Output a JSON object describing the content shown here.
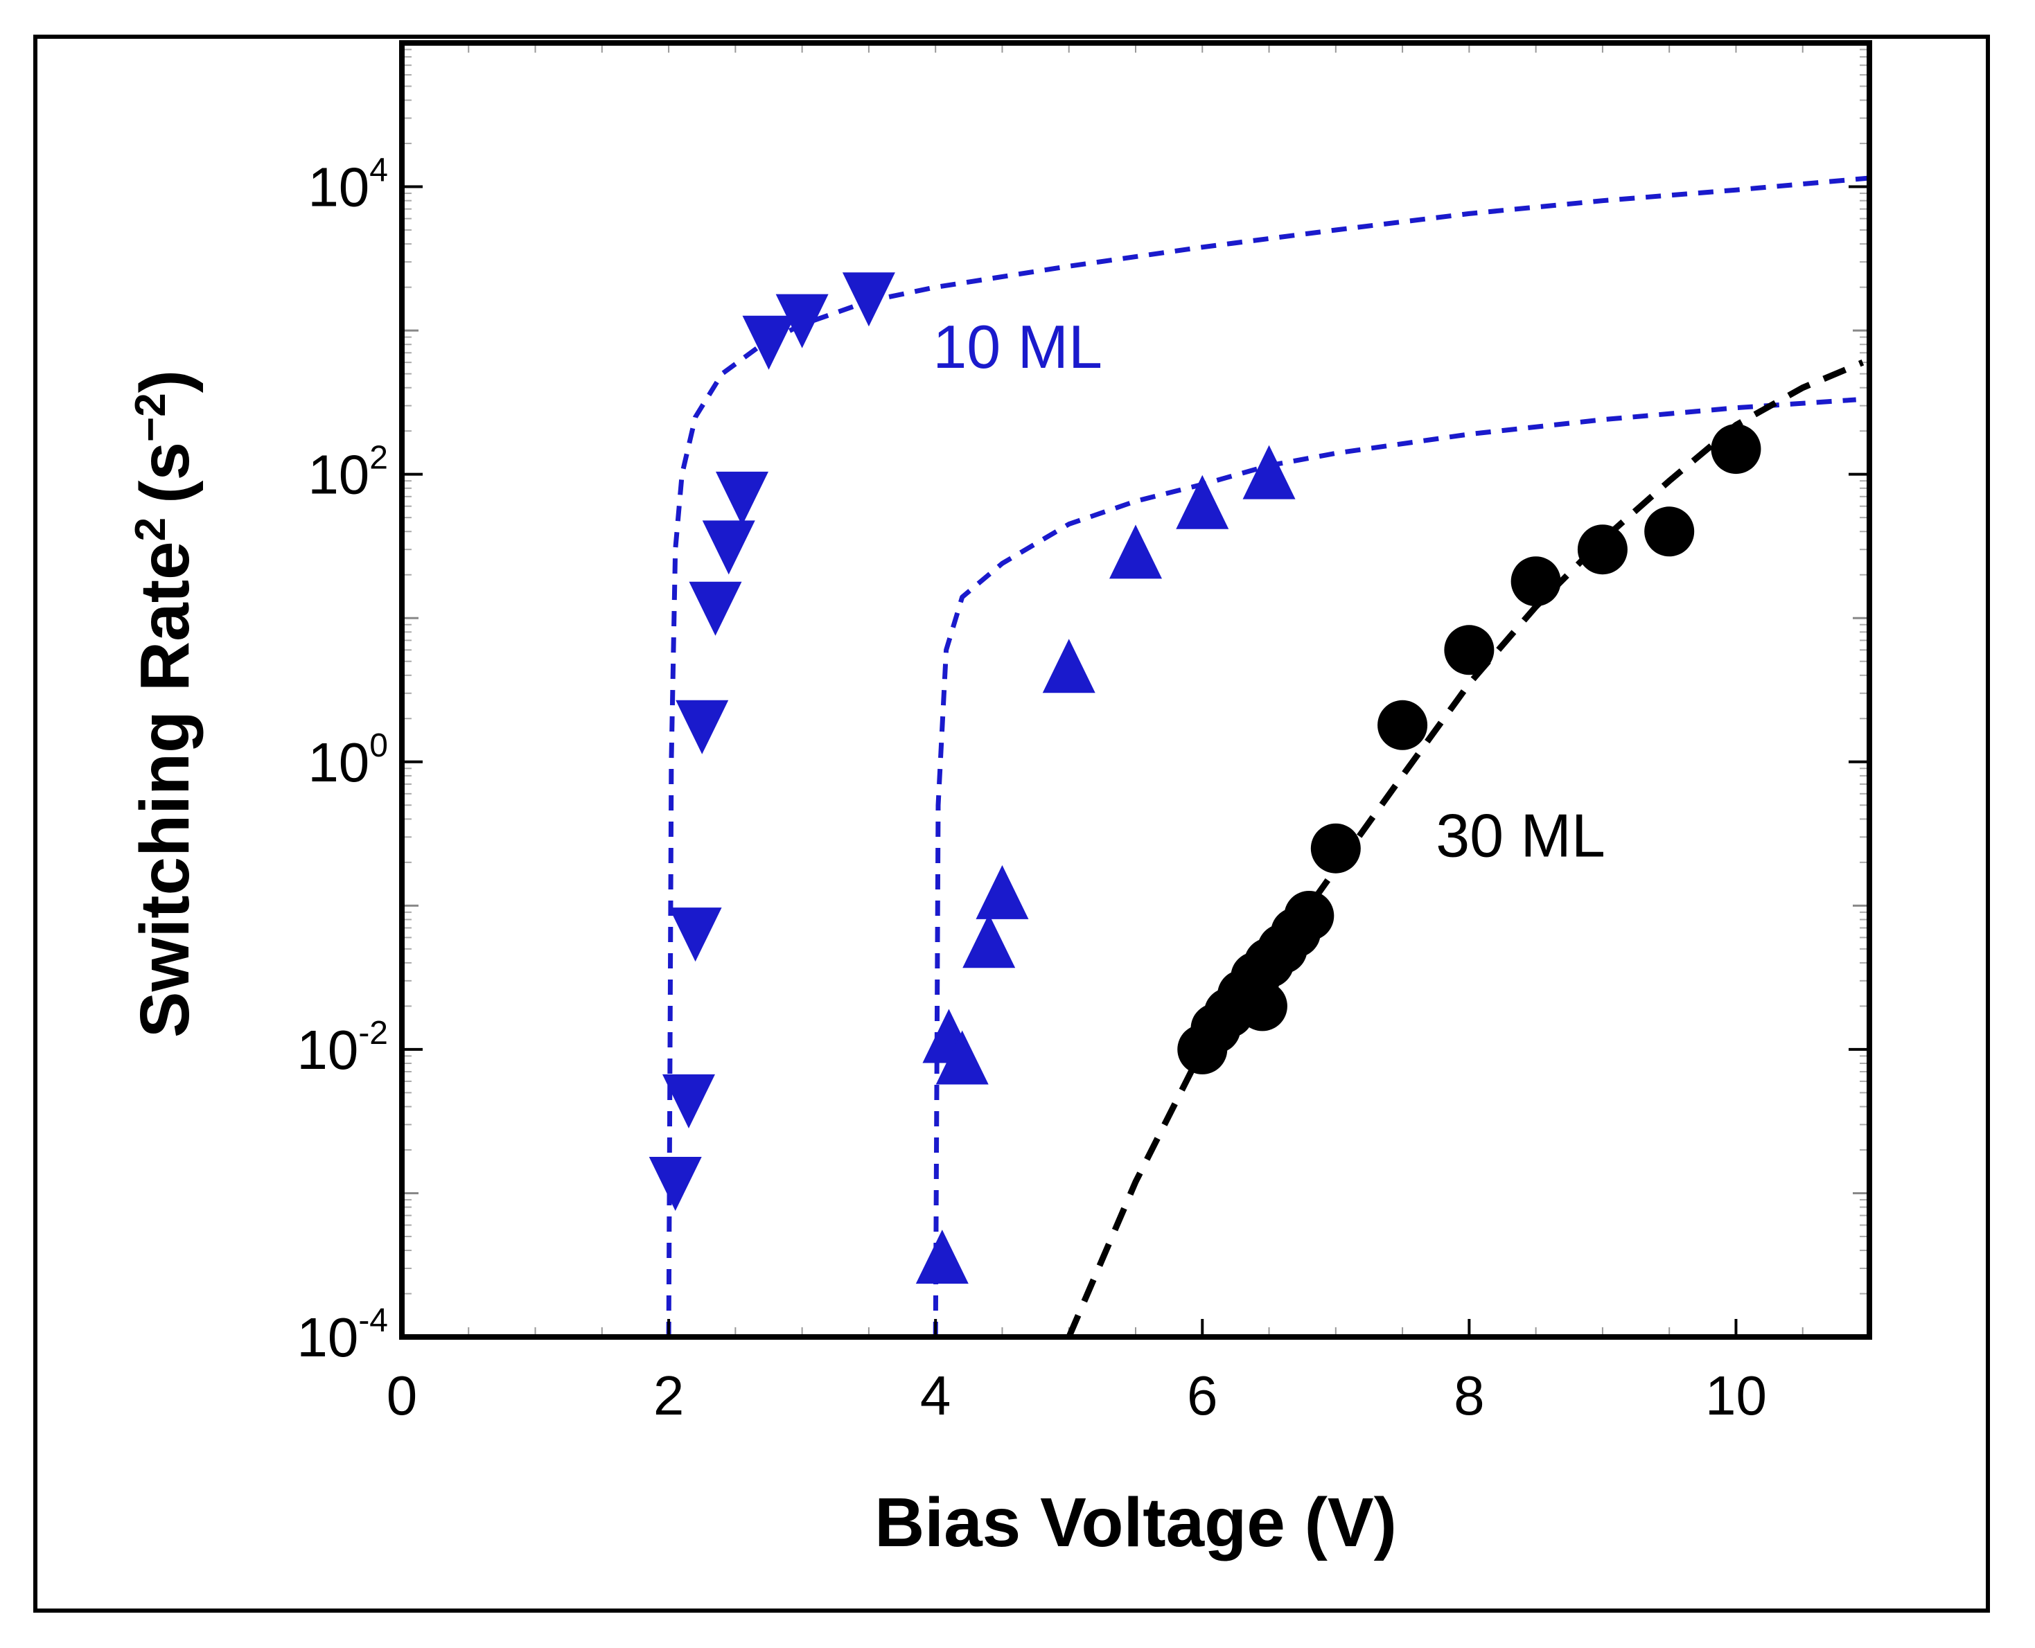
{
  "chart_data": {
    "type": "scatter",
    "title": "",
    "xlabel": "Bias Voltage (V)",
    "ylabel_main": "Switching Rate",
    "ylabel_sup": "2",
    "ylabel_unit_open": "(s",
    "ylabel_unit_sup": "−2",
    "ylabel_unit_close": ")",
    "yscale": "log",
    "xlim": [
      0,
      11
    ],
    "ylim": [
      0.0001,
      100000
    ],
    "x_ticks": [
      {
        "value": 0,
        "label": "0"
      },
      {
        "value": 2,
        "label": "2"
      },
      {
        "value": 4,
        "label": "4"
      },
      {
        "value": 6,
        "label": "6"
      },
      {
        "value": 8,
        "label": "8"
      },
      {
        "value": 10,
        "label": "10"
      }
    ],
    "y_ticks": [
      {
        "value": 0.0001,
        "base": "10",
        "exp": "-4"
      },
      {
        "value": 0.01,
        "base": "10",
        "exp": "-2"
      },
      {
        "value": 1,
        "base": "10",
        "exp": "0"
      },
      {
        "value": 100,
        "base": "10",
        "exp": "2"
      },
      {
        "value": 10000,
        "base": "10",
        "exp": "4"
      }
    ],
    "colors": {
      "blue": "#1a1acc",
      "black": "#000000"
    },
    "series": [
      {
        "name": "10 ML (down triangles)",
        "marker": "triangle-down",
        "color": "#1a1acc",
        "points": [
          {
            "x": 2.05,
            "y": 0.0012
          },
          {
            "x": 2.15,
            "y": 0.0045
          },
          {
            "x": 2.2,
            "y": 0.065
          },
          {
            "x": 2.25,
            "y": 1.8
          },
          {
            "x": 2.35,
            "y": 12
          },
          {
            "x": 2.45,
            "y": 32
          },
          {
            "x": 2.55,
            "y": 70
          },
          {
            "x": 2.75,
            "y": 850
          },
          {
            "x": 3.0,
            "y": 1200
          },
          {
            "x": 3.5,
            "y": 1700
          }
        ]
      },
      {
        "name": "10 ML (up triangles)",
        "marker": "triangle-up",
        "color": "#1a1acc",
        "points": [
          {
            "x": 4.05,
            "y": 0.00035
          },
          {
            "x": 4.1,
            "y": 0.012
          },
          {
            "x": 4.2,
            "y": 0.0085
          },
          {
            "x": 4.4,
            "y": 0.055
          },
          {
            "x": 4.5,
            "y": 0.12
          },
          {
            "x": 5.0,
            "y": 4.5
          },
          {
            "x": 5.5,
            "y": 28
          },
          {
            "x": 6.0,
            "y": 62
          },
          {
            "x": 6.5,
            "y": 100
          }
        ]
      },
      {
        "name": "30 ML (circles)",
        "marker": "circle",
        "color": "#000000",
        "points": [
          {
            "x": 6.0,
            "y": 0.01
          },
          {
            "x": 6.1,
            "y": 0.014
          },
          {
            "x": 6.2,
            "y": 0.018
          },
          {
            "x": 6.3,
            "y": 0.024
          },
          {
            "x": 6.4,
            "y": 0.032
          },
          {
            "x": 6.5,
            "y": 0.04
          },
          {
            "x": 6.6,
            "y": 0.05
          },
          {
            "x": 6.7,
            "y": 0.065
          },
          {
            "x": 6.8,
            "y": 0.085
          },
          {
            "x": 6.45,
            "y": 0.02
          },
          {
            "x": 7.0,
            "y": 0.25
          },
          {
            "x": 7.5,
            "y": 1.8
          },
          {
            "x": 8.0,
            "y": 6
          },
          {
            "x": 8.5,
            "y": 18
          },
          {
            "x": 9.0,
            "y": 30
          },
          {
            "x": 9.5,
            "y": 40
          },
          {
            "x": 10.0,
            "y": 150
          }
        ]
      }
    ],
    "fits": [
      {
        "name": "10 ML fit (down)",
        "style": "dashed",
        "color": "#1a1acc",
        "points": [
          {
            "x": 2.0,
            "y": 0.0001
          },
          {
            "x": 2.02,
            "y": 1
          },
          {
            "x": 2.05,
            "y": 30
          },
          {
            "x": 2.1,
            "y": 100
          },
          {
            "x": 2.2,
            "y": 250
          },
          {
            "x": 2.4,
            "y": 500
          },
          {
            "x": 2.7,
            "y": 800
          },
          {
            "x": 3.0,
            "y": 1100
          },
          {
            "x": 3.5,
            "y": 1600
          },
          {
            "x": 4.0,
            "y": 2000
          },
          {
            "x": 5.0,
            "y": 2800
          },
          {
            "x": 6.0,
            "y": 3800
          },
          {
            "x": 7.0,
            "y": 5000
          },
          {
            "x": 8.0,
            "y": 6500
          },
          {
            "x": 9.0,
            "y": 8000
          },
          {
            "x": 10.0,
            "y": 9500
          },
          {
            "x": 11.0,
            "y": 11500
          }
        ]
      },
      {
        "name": "10 ML fit (up)",
        "style": "dashed",
        "color": "#1a1acc",
        "points": [
          {
            "x": 4.0,
            "y": 0.0001
          },
          {
            "x": 4.02,
            "y": 0.5
          },
          {
            "x": 4.08,
            "y": 6
          },
          {
            "x": 4.2,
            "y": 14
          },
          {
            "x": 4.5,
            "y": 24
          },
          {
            "x": 5.0,
            "y": 45
          },
          {
            "x": 5.5,
            "y": 65
          },
          {
            "x": 6.0,
            "y": 85
          },
          {
            "x": 6.5,
            "y": 115
          },
          {
            "x": 7.0,
            "y": 140
          },
          {
            "x": 8.0,
            "y": 190
          },
          {
            "x": 9.0,
            "y": 240
          },
          {
            "x": 10.0,
            "y": 290
          },
          {
            "x": 10.9,
            "y": 330
          }
        ]
      },
      {
        "name": "30 ML fit",
        "style": "dashed",
        "color": "#000000",
        "points": [
          {
            "x": 5.0,
            "y": 0.0001
          },
          {
            "x": 5.5,
            "y": 0.0012
          },
          {
            "x": 6.0,
            "y": 0.01
          },
          {
            "x": 6.5,
            "y": 0.04
          },
          {
            "x": 7.0,
            "y": 0.18
          },
          {
            "x": 7.5,
            "y": 0.8
          },
          {
            "x": 8.0,
            "y": 3.5
          },
          {
            "x": 8.5,
            "y": 12
          },
          {
            "x": 9.0,
            "y": 35
          },
          {
            "x": 9.5,
            "y": 90
          },
          {
            "x": 10.0,
            "y": 220
          },
          {
            "x": 10.5,
            "y": 400
          },
          {
            "x": 10.95,
            "y": 600
          }
        ]
      }
    ],
    "annotations": [
      {
        "text": "10 ML",
        "x": 3.98,
        "y": 550,
        "color": "#1a1acc"
      },
      {
        "text": "30 ML",
        "x": 7.75,
        "y": 0.22,
        "color": "#000000"
      }
    ]
  }
}
